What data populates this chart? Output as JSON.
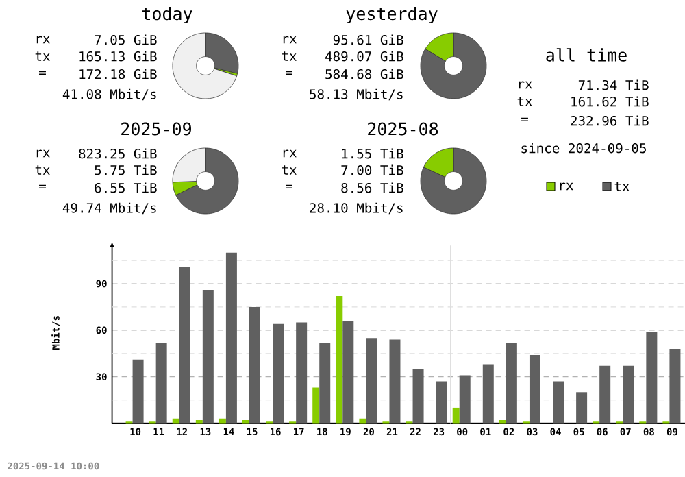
{
  "chart_data": [
    {
      "type": "donut",
      "title": "today",
      "categories": [
        null,
        null,
        null
      ],
      "values": [
        28.8,
        1.2,
        70.0
      ],
      "colors": [
        "#606060",
        "#88cc00",
        "#f0f0f0"
      ],
      "annotations": [
        "rx",
        "7.05 GiB",
        "tx",
        "165.13 GiB",
        "=",
        "172.18 GiB",
        "41.08 Mbit/s"
      ]
    },
    {
      "type": "donut",
      "title": "yesterday",
      "categories": [
        null,
        null
      ],
      "values": [
        83.6,
        16.4
      ],
      "colors": [
        "#606060",
        "#88cc00"
      ],
      "annotations": [
        "rx",
        "95.61 GiB",
        "tx",
        "489.07 GiB",
        "=",
        "584.68 GiB",
        "58.13 Mbit/s"
      ]
    },
    {
      "type": "donut",
      "title": "2025-09",
      "categories": [
        null,
        null,
        null
      ],
      "values": [
        67.9,
        6.5,
        25.6
      ],
      "colors": [
        "#606060",
        "#88cc00",
        "#f0f0f0"
      ],
      "annotations": [
        "rx",
        "823.25 GiB",
        "tx",
        "5.75 TiB",
        "=",
        "6.55 TiB",
        "49.74 Mbit/s"
      ]
    },
    {
      "type": "donut",
      "title": "2025-08",
      "categories": [
        null,
        null
      ],
      "values": [
        81.9,
        18.1
      ],
      "colors": [
        "#606060",
        "#88cc00"
      ],
      "annotations": [
        "rx",
        "1.55 TiB",
        "tx",
        "7.00 TiB",
        "=",
        "8.56 TiB",
        "28.10 Mbit/s"
      ]
    },
    {
      "type": "other",
      "title": "all time",
      "annotations": [
        "rx",
        "71.34 TiB",
        "tx",
        "161.62 TiB",
        "=",
        "232.96 TiB",
        "since 2024-09-05"
      ]
    },
    {
      "type": "bar",
      "ylabel": "Mbit/s",
      "categories": [
        "10",
        "11",
        "12",
        "13",
        "14",
        "15",
        "16",
        "17",
        "18",
        "19",
        "20",
        "21",
        "22",
        "23",
        "00",
        "01",
        "02",
        "03",
        "04",
        "05",
        "06",
        "07",
        "08",
        "09"
      ],
      "series": [
        {
          "name": "rx",
          "color": "#88cc00",
          "values": [
            1,
            1,
            3,
            2,
            3,
            2,
            1,
            1,
            23,
            82,
            3,
            1,
            1,
            0,
            10,
            0,
            2,
            1,
            0,
            0,
            1,
            1,
            1,
            1
          ]
        },
        {
          "name": "tx",
          "color": "#606060",
          "values": [
            41,
            52,
            101,
            86,
            110,
            75,
            64,
            65,
            52,
            66,
            55,
            54,
            35,
            27,
            31,
            38,
            52,
            44,
            27,
            20,
            37,
            37,
            59,
            48
          ]
        }
      ],
      "ylim": [
        0,
        117
      ],
      "yticks": [
        {
          "value": 15,
          "label": null
        },
        30,
        {
          "value": 45,
          "label": null
        },
        60,
        {
          "value": 75,
          "label": null
        },
        90,
        {
          "value": 105,
          "label": null
        }
      ],
      "grid": "y",
      "legend": "top right",
      "ref_lines": [
        {
          "axis": "x",
          "value": "00",
          "color": "#dddddd"
        }
      ],
      "annotations": [
        "2025-09-14 10:00"
      ]
    }
  ]
}
